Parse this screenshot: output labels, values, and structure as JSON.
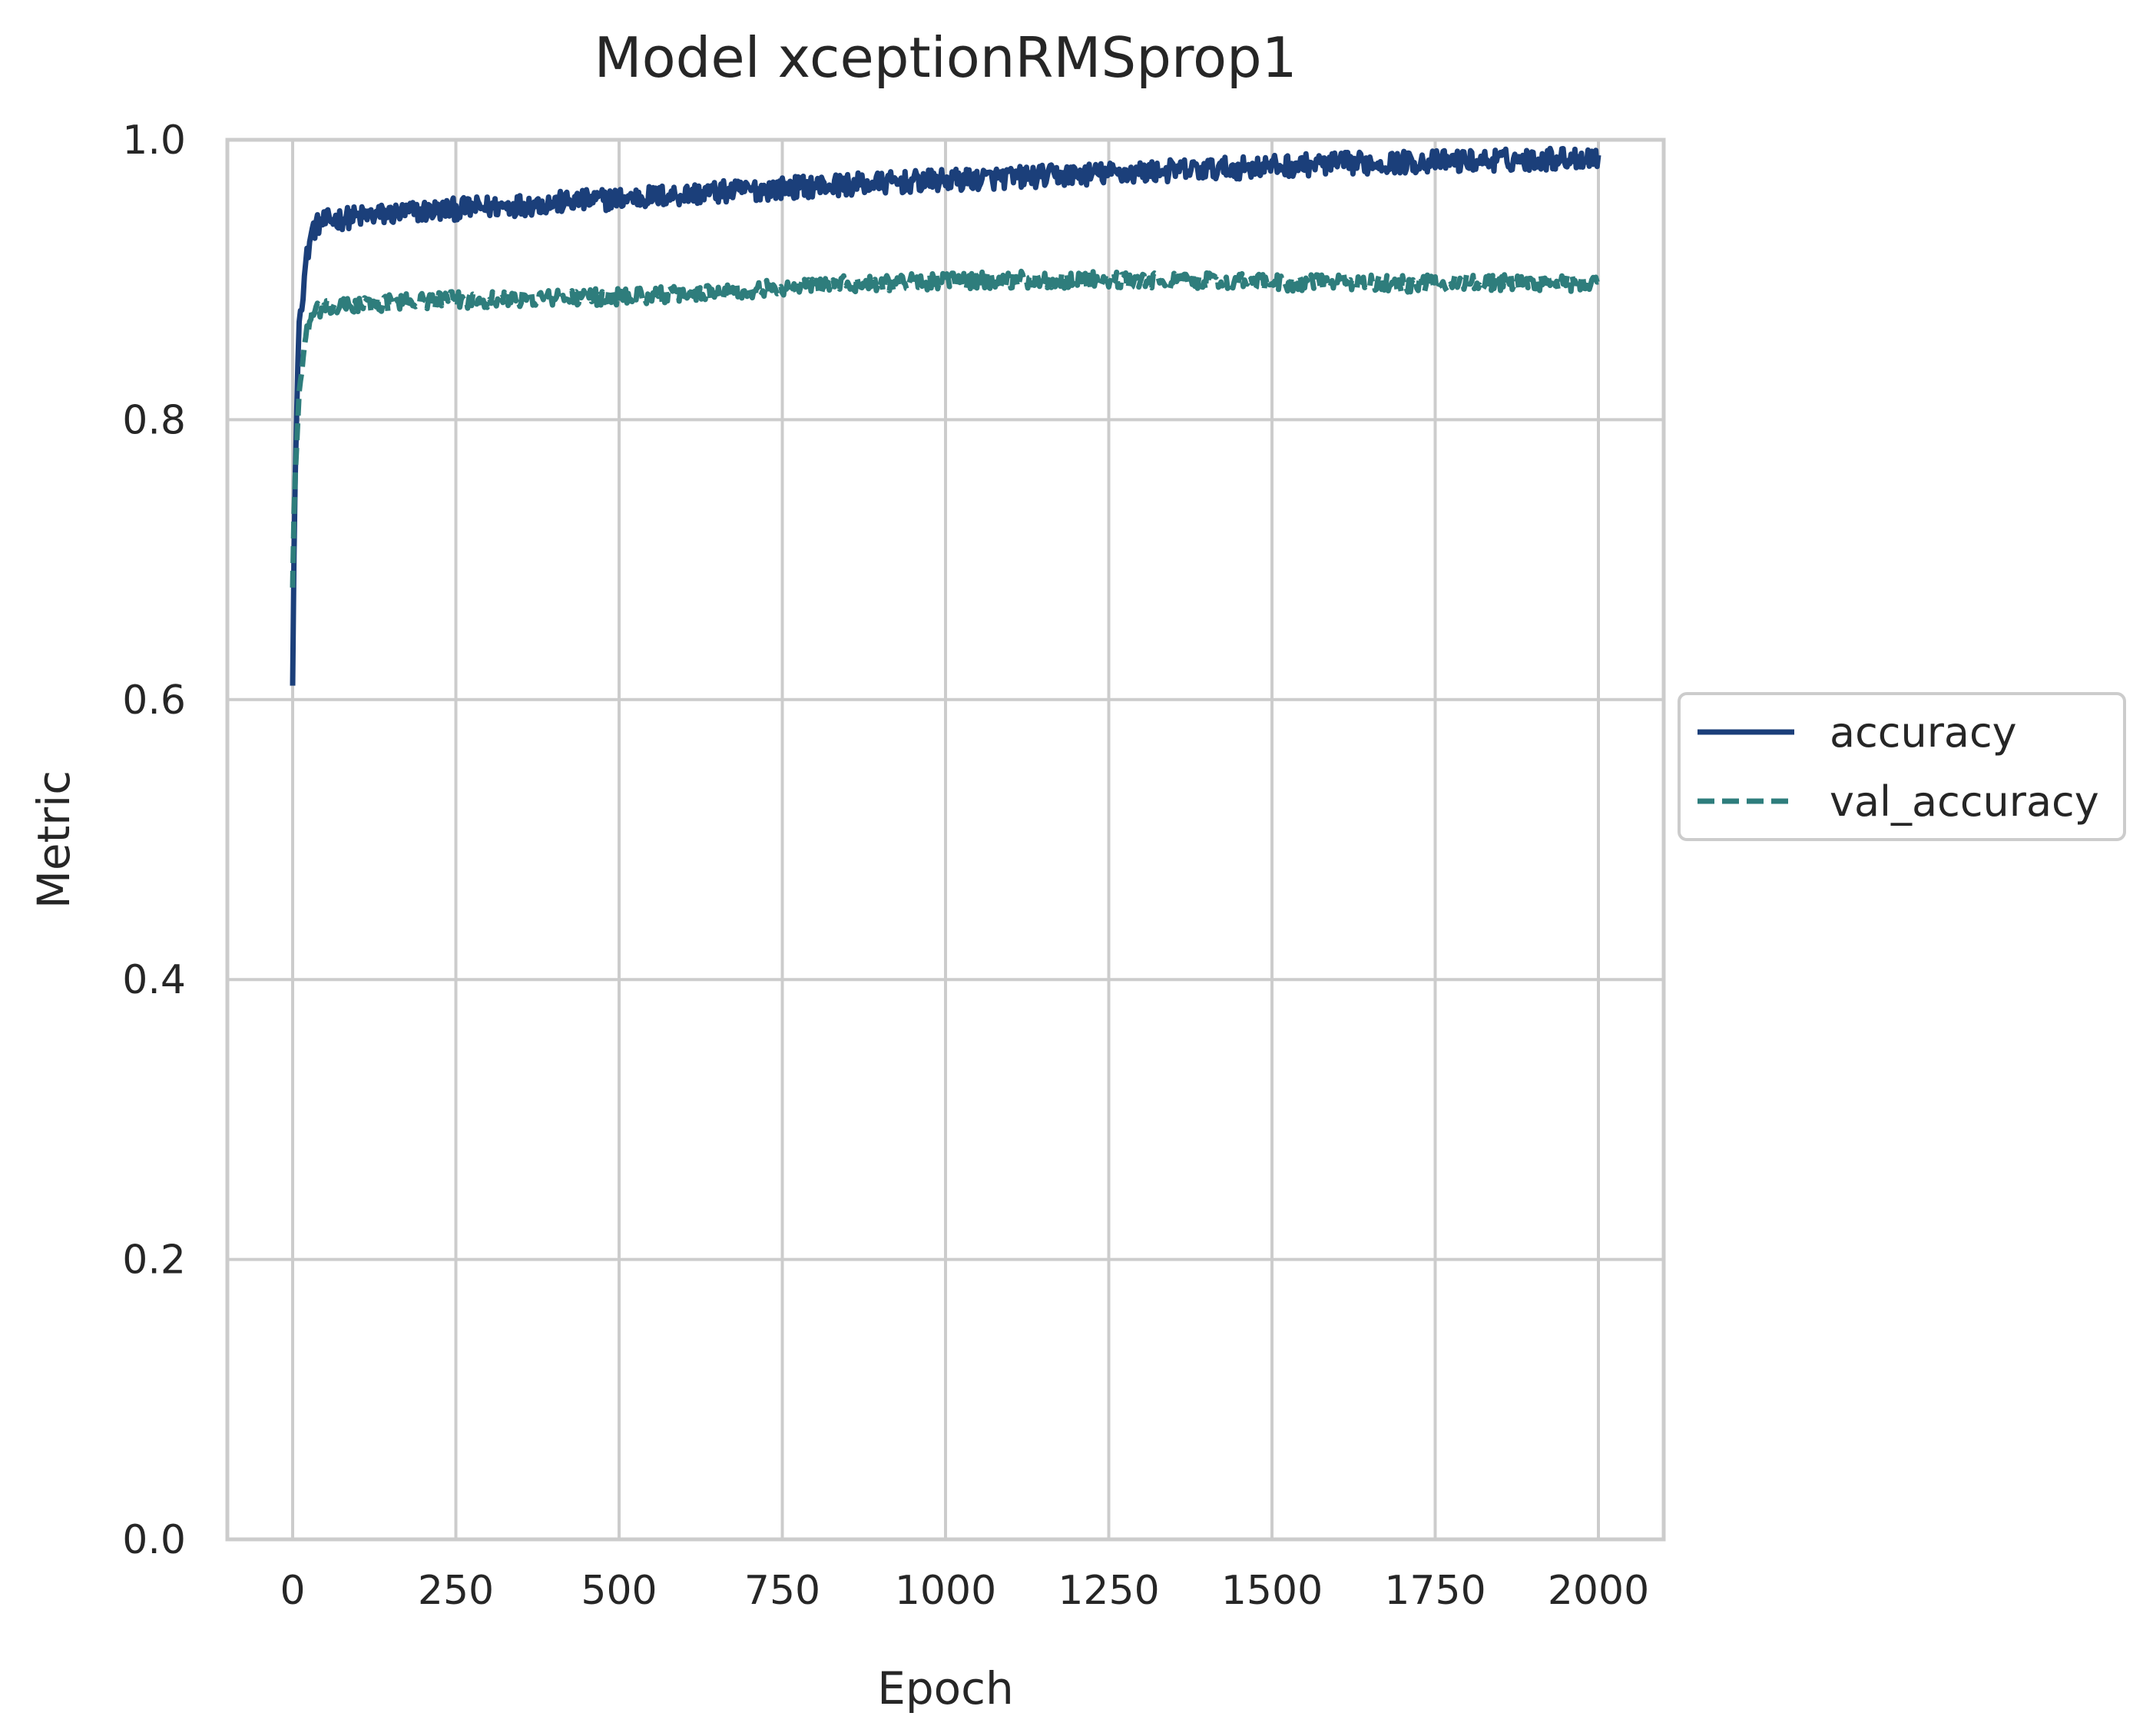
{
  "chart_data": {
    "type": "line",
    "title": "Model xceptionRMSprop1",
    "xlabel": "Epoch",
    "ylabel": "Metric",
    "xlim": [
      -100,
      2100
    ],
    "ylim": [
      0.0,
      1.0
    ],
    "x_ticks": [
      0,
      250,
      500,
      750,
      1000,
      1250,
      1500,
      1750,
      2000
    ],
    "y_ticks": [
      0.0,
      0.2,
      0.4,
      0.6,
      0.8,
      1.0
    ],
    "x_tick_labels": [
      "0",
      "250",
      "500",
      "750",
      "1000",
      "1250",
      "1500",
      "1750",
      "2000"
    ],
    "y_tick_labels": [
      "0.0",
      "0.2",
      "0.4",
      "0.6",
      "0.8",
      "1.0"
    ],
    "grid": true,
    "legend_position": "center-right-outside",
    "series": [
      {
        "name": "accuracy",
        "style": "solid",
        "color": "#1b3f7a",
        "noise_amplitude": 0.008,
        "x": [
          0,
          2,
          4,
          6,
          8,
          10,
          15,
          20,
          25,
          30,
          40,
          60,
          100,
          150,
          200,
          300,
          400,
          500,
          600,
          700,
          800,
          900,
          1000,
          1100,
          1200,
          1300,
          1400,
          1500,
          1600,
          1700,
          1800,
          1900,
          2000
        ],
        "values": [
          0.61,
          0.7,
          0.76,
          0.8,
          0.84,
          0.87,
          0.89,
          0.91,
          0.925,
          0.935,
          0.94,
          0.943,
          0.945,
          0.947,
          0.949,
          0.952,
          0.955,
          0.958,
          0.961,
          0.964,
          0.967,
          0.969,
          0.971,
          0.973,
          0.975,
          0.977,
          0.979,
          0.981,
          0.983,
          0.984,
          0.985,
          0.986,
          0.988
        ]
      },
      {
        "name": "val_accuracy",
        "style": "dashed",
        "color": "#2e7d7c",
        "noise_amplitude": 0.006,
        "x": [
          0,
          2,
          4,
          6,
          8,
          10,
          15,
          20,
          25,
          30,
          40,
          60,
          100,
          200,
          300,
          400,
          500,
          600,
          700,
          800,
          900,
          1000,
          1100,
          1200,
          1300,
          1400,
          1500,
          1600,
          1700,
          1800,
          1900,
          2000
        ],
        "values": [
          0.68,
          0.73,
          0.76,
          0.78,
          0.8,
          0.82,
          0.84,
          0.86,
          0.87,
          0.875,
          0.878,
          0.88,
          0.882,
          0.885,
          0.886,
          0.887,
          0.888,
          0.89,
          0.893,
          0.896,
          0.898,
          0.899,
          0.9,
          0.9,
          0.899,
          0.899,
          0.898,
          0.898,
          0.897,
          0.898,
          0.898,
          0.897
        ]
      }
    ]
  }
}
